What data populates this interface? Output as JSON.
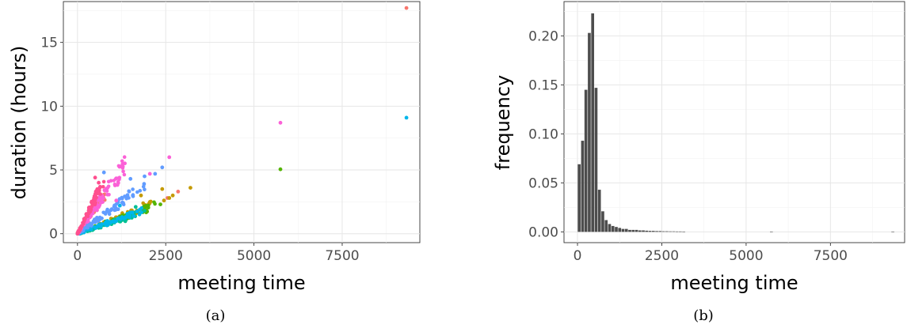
{
  "figure": {
    "panels": [
      {
        "caption": "(a)"
      },
      {
        "caption": "(b)"
      }
    ]
  },
  "chart_data": [
    {
      "type": "scatter",
      "title": "",
      "xlabel": "meeting time",
      "ylabel": "duration (hours)",
      "xlim": [
        -400,
        9700
      ],
      "ylim": [
        -0.7,
        18.2
      ],
      "xticks": [
        0,
        2500,
        5000,
        7500
      ],
      "xtick_labels": [
        "0",
        "2500",
        "5000",
        "7500"
      ],
      "yticks": [
        0,
        5,
        10,
        15
      ],
      "ytick_labels": [
        "0",
        "5",
        "10",
        "15"
      ],
      "grid": true,
      "legend": "none",
      "series": [
        {
          "color": "#f8766d",
          "slope": 0.004,
          "xmax": 800,
          "points": [
            [
              9320,
              17.7
            ],
            [
              2850,
              3.3
            ],
            [
              2550,
              2.8
            ]
          ]
        },
        {
          "color": "#c49a00",
          "slope": 0.0011,
          "xmax": 2100,
          "points": [
            [
              3200,
              3.6
            ],
            [
              2700,
              3.0
            ],
            [
              2600,
              2.8
            ],
            [
              2450,
              2.6
            ],
            [
              2400,
              3.5
            ],
            [
              1800,
              3.0
            ]
          ]
        },
        {
          "color": "#53b400",
          "slope": 0.001,
          "xmax": 2200,
          "points": [
            [
              5750,
              5.05
            ],
            [
              2350,
              2.3
            ]
          ]
        },
        {
          "color": "#00c094",
          "slope": 0.0009,
          "xmax": 1700,
          "points": [
            [
              1900,
              1.8
            ],
            [
              1650,
              2.1
            ]
          ]
        },
        {
          "color": "#00b6eb",
          "slope": 0.001,
          "xmax": 1900,
          "points": [
            [
              9320,
              9.1
            ],
            [
              1200,
              2.2
            ]
          ]
        },
        {
          "color": "#619cff",
          "slope": 0.002,
          "xmax": 1900,
          "points": [
            [
              2400,
              5.2
            ],
            [
              2200,
              4.7
            ],
            [
              1900,
              4.5
            ],
            [
              1500,
              4.3
            ],
            [
              750,
              4.8
            ]
          ]
        },
        {
          "color": "#fb61d7",
          "slope": 0.004,
          "xmax": 1400,
          "points": [
            [
              5750,
              8.7
            ],
            [
              2600,
              6.0
            ],
            [
              2050,
              4.7
            ],
            [
              1100,
              2.6
            ]
          ]
        },
        {
          "color": "#ff4f8f",
          "slope": 0.0055,
          "xmax": 750,
          "points": [
            [
              500,
              4.4
            ],
            [
              600,
              4.0
            ]
          ]
        }
      ]
    },
    {
      "type": "bar",
      "title": "",
      "xlabel": "meeting time",
      "ylabel": "frequency",
      "xlim": [
        -400,
        9700
      ],
      "ylim": [
        -0.011,
        0.235
      ],
      "xticks": [
        0,
        2500,
        5000,
        7500
      ],
      "xtick_labels": [
        "0",
        "2500",
        "5000",
        "7500"
      ],
      "yticks": [
        0,
        0.05,
        0.1,
        0.15,
        0.2
      ],
      "ytick_labels": [
        "0.00",
        "0.05",
        "0.10",
        "0.15",
        "0.20"
      ],
      "grid": true,
      "bin_width": 100,
      "bar_color": "#4d4d4d",
      "bins_start": [
        0,
        100,
        200,
        300,
        400,
        500,
        600,
        700,
        800,
        900,
        1000,
        1100,
        1200,
        1300,
        1400,
        1500,
        1600,
        1700,
        1800,
        1900,
        2000,
        2100,
        2200,
        2300,
        2400,
        2500,
        2600,
        2700,
        2800,
        2900,
        3000,
        3100,
        5700,
        9300
      ],
      "values": [
        0.069,
        0.093,
        0.145,
        0.203,
        0.223,
        0.147,
        0.043,
        0.021,
        0.012,
        0.008,
        0.006,
        0.005,
        0.004,
        0.003,
        0.003,
        0.002,
        0.002,
        0.002,
        0.0015,
        0.0015,
        0.0012,
        0.001,
        0.001,
        0.0008,
        0.0008,
        0.0006,
        0.0006,
        0.0005,
        0.0005,
        0.0004,
        0.0004,
        0.0003,
        0.0003,
        0.0003
      ]
    }
  ]
}
